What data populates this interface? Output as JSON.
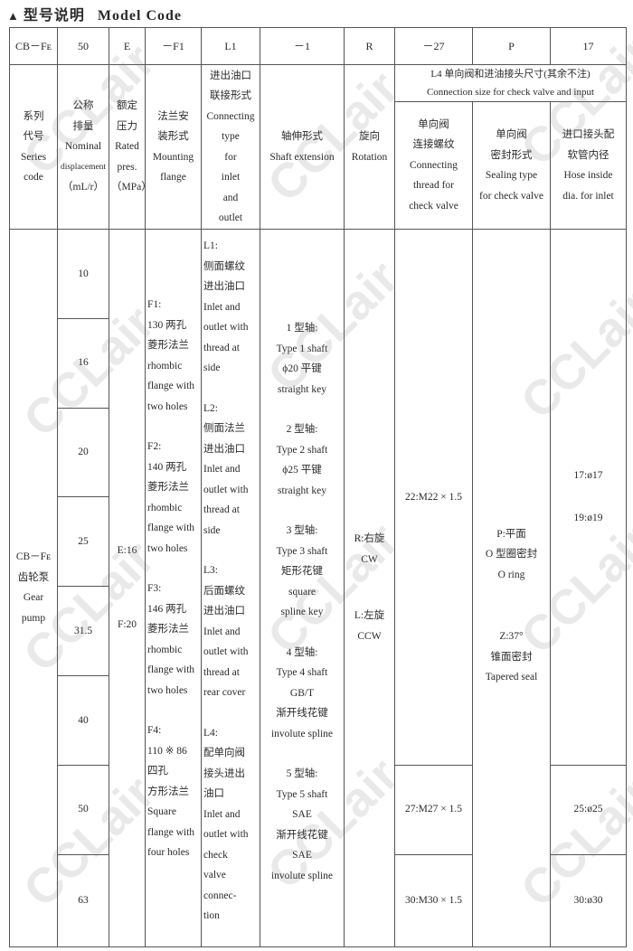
{
  "title": {
    "icon": "triangle-up-icon",
    "zh": "型号说明",
    "en": "Model Code"
  },
  "code_row": [
    "CB－Fᴇ",
    "50",
    "E",
    "－F1",
    "L1",
    "－1",
    "R",
    "－27",
    "P",
    "17"
  ],
  "headers": {
    "series": [
      "系列",
      "代号",
      "Series",
      "code"
    ],
    "displacement": [
      "公称",
      "排量",
      "Nominal",
      "displacement",
      "（mL/r）"
    ],
    "pressure": [
      "额定",
      "压力",
      "Rated",
      "pres.",
      "（MPa）"
    ],
    "flange": [
      "法兰安",
      "装形式",
      "Mounting",
      "flange"
    ],
    "connecting": [
      "进出油口",
      "联接形式",
      "Connecting",
      "type",
      "for",
      "inlet",
      "and",
      "outlet"
    ],
    "shaft": [
      "轴伸形式",
      "Shaft extension"
    ],
    "rotation": [
      "旋向",
      "Rotation"
    ],
    "l4_group": [
      "L4 单向阀和进油接头尺寸(其余不注)",
      "Connection size for check valve and input"
    ],
    "check_thread": [
      "单向阀",
      "连接螺纹",
      "Connecting",
      "thread for",
      "check valve"
    ],
    "seal_type": [
      "单向阀",
      "密封形式",
      "Sealing type",
      "for check valve"
    ],
    "hose": [
      "进口接头配",
      "软管内径",
      "Hose inside",
      "dia. for inlet"
    ]
  },
  "body": {
    "series": [
      "CB－Fᴇ",
      "齿轮泵",
      "Gear",
      "pump"
    ],
    "displacements": [
      "10",
      "16",
      "20",
      "25",
      "31.5",
      "40",
      "50",
      "63"
    ],
    "pressures": [
      "E:16",
      "F:20"
    ],
    "flanges": [
      [
        "F1:",
        "130 两孔",
        "菱形法兰",
        "rhombic",
        "flange with",
        "two holes"
      ],
      [
        "F2:",
        "140 两孔",
        "菱形法兰",
        "rhombic",
        "flange with",
        "two holes"
      ],
      [
        "F3:",
        "146 两孔",
        "菱形法兰",
        "rhombic",
        "flange with",
        "two holes"
      ],
      [
        "F4:",
        "110 ※ 86",
        "四孔",
        "方形法兰",
        "Square",
        "flange with",
        "four holes"
      ]
    ],
    "connections": [
      [
        "L1:",
        "侧面螺纹",
        "进出油口",
        "Inlet and",
        "outlet with",
        "thread at",
        "side"
      ],
      [
        "L2:",
        "侧面法兰",
        "进出油口",
        "Inlet and",
        "outlet with",
        "thread at",
        "side"
      ],
      [
        "L3:",
        "后面螺纹",
        "进出油口",
        "Inlet and",
        "outlet with",
        "thread at",
        "rear cover"
      ],
      [
        "L4:",
        "配单向阀",
        "接头进出",
        "油口",
        "Inlet and",
        "outlet with",
        "check",
        "valve",
        "connec-",
        "tion"
      ]
    ],
    "shafts": [
      [
        "1 型轴:",
        "Type 1 shaft",
        "ϕ20 平键",
        "straight key"
      ],
      [
        "2 型轴:",
        "Type 2 shaft",
        "ϕ25 平键",
        "straight key"
      ],
      [
        "3 型轴:",
        "Type 3 shaft",
        "矩形花键",
        "square",
        "spline key"
      ],
      [
        "4 型轴:",
        "Type 4 shaft",
        "GB/T",
        "渐开线花键",
        "involute spline"
      ],
      [
        "5 型轴:",
        "Type 5 shaft",
        "SAE",
        "渐开线花键",
        "SAE",
        "involute spline"
      ]
    ],
    "rotations": [
      [
        "R:右旋",
        "CW"
      ],
      [
        "L:左旋",
        "CCW"
      ]
    ],
    "check_threads": [
      "22:M22 × 1.5",
      "27:M27 × 1.5",
      "30:M30 × 1.5"
    ],
    "seals": [
      [
        "P:平面",
        "O 型圈密封",
        "O ring"
      ],
      [
        "Z:37°",
        "锥面密封",
        "Tapered seal"
      ]
    ],
    "hoses": [
      "17:ø17",
      "19:ø19",
      "25:ø25",
      "30:ø30"
    ]
  },
  "watermark": "CCLair"
}
